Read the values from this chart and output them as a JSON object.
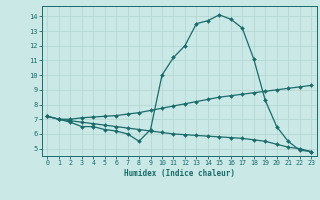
{
  "xlabel": "Humidex (Indice chaleur)",
  "bg_color": "#c9e8e6",
  "line_color": "#1a6b6b",
  "grid_color": "#b0d4d0",
  "xlim": [
    -0.5,
    23.5
  ],
  "ylim": [
    4.5,
    14.7
  ],
  "xticks": [
    0,
    1,
    2,
    3,
    4,
    5,
    6,
    7,
    8,
    9,
    10,
    11,
    12,
    13,
    14,
    15,
    16,
    17,
    18,
    19,
    20,
    21,
    22,
    23
  ],
  "yticks": [
    5,
    6,
    7,
    8,
    9,
    10,
    11,
    12,
    13,
    14
  ],
  "line1_x": [
    0,
    1,
    2,
    3,
    4,
    5,
    6,
    7,
    8,
    9,
    10,
    11,
    12,
    13,
    14,
    15,
    16,
    17,
    18,
    19,
    20,
    21,
    22,
    23
  ],
  "line1_y": [
    7.2,
    7.0,
    6.8,
    6.5,
    6.5,
    6.3,
    6.2,
    6.0,
    5.5,
    6.3,
    10.0,
    11.2,
    12.0,
    13.5,
    13.7,
    14.1,
    13.8,
    13.2,
    11.1,
    8.3,
    6.5,
    5.5,
    4.9,
    4.8
  ],
  "line2_x": [
    0,
    1,
    2,
    3,
    4,
    5,
    6,
    7,
    8,
    9,
    10,
    11,
    12,
    13,
    14,
    15,
    16,
    17,
    18,
    19,
    20,
    21,
    22,
    23
  ],
  "line2_y": [
    7.2,
    7.0,
    7.0,
    7.1,
    7.15,
    7.2,
    7.25,
    7.35,
    7.45,
    7.6,
    7.75,
    7.9,
    8.05,
    8.2,
    8.35,
    8.5,
    8.6,
    8.7,
    8.8,
    8.9,
    9.0,
    9.1,
    9.2,
    9.3
  ],
  "line3_x": [
    0,
    1,
    2,
    3,
    4,
    5,
    6,
    7,
    8,
    9,
    10,
    11,
    12,
    13,
    14,
    15,
    16,
    17,
    18,
    19,
    20,
    21,
    22,
    23
  ],
  "line3_y": [
    7.2,
    7.0,
    6.9,
    6.8,
    6.7,
    6.6,
    6.5,
    6.4,
    6.3,
    6.2,
    6.1,
    6.0,
    5.95,
    5.9,
    5.85,
    5.8,
    5.75,
    5.7,
    5.6,
    5.5,
    5.3,
    5.1,
    5.0,
    4.8
  ]
}
